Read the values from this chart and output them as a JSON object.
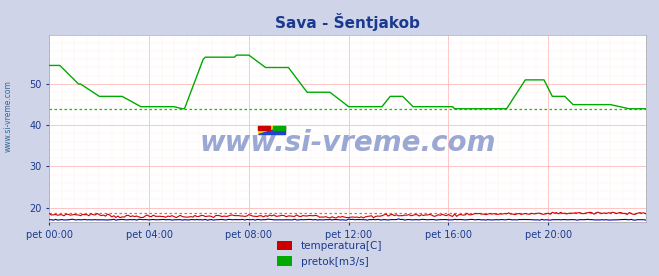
{
  "title": "Sava - Šentjakob",
  "title_color": "#1a3a8f",
  "bg_color": "#d0d4e8",
  "plot_bg_color": "#ffffff",
  "tick_label_color": "#1a3a8f",
  "ylabel_text": "www.si-vreme.com",
  "ylabel_color": "#336699",
  "watermark_text": "www.si-vreme.com",
  "watermark_color": "#8899cc",
  "xtick_labels": [
    "pet 00:00",
    "pet 04:00",
    "pet 08:00",
    "pet 12:00",
    "pet 16:00",
    "pet 20:00"
  ],
  "xtick_positions": [
    0,
    48,
    96,
    144,
    192,
    240
  ],
  "ytick_values": [
    20,
    30,
    40,
    50
  ],
  "ylim": [
    16.5,
    62
  ],
  "xlim": [
    0,
    287
  ],
  "grid_major_color": "#ffbbbb",
  "grid_minor_color": "#ffeeee",
  "temp_color": "#cc0000",
  "pretok_color": "#00aa00",
  "temp_avg_color": "#ff5555",
  "pretok_avg_color": "#00cc00",
  "visina_color": "#0000bb",
  "legend_labels": [
    "temperatura[C]",
    "pretok[m3/s]"
  ],
  "legend_colors": [
    "#cc0000",
    "#00aa00"
  ],
  "temp_avg_value": 18.8,
  "pretok_avg_value": 44.0,
  "n_points": 288
}
